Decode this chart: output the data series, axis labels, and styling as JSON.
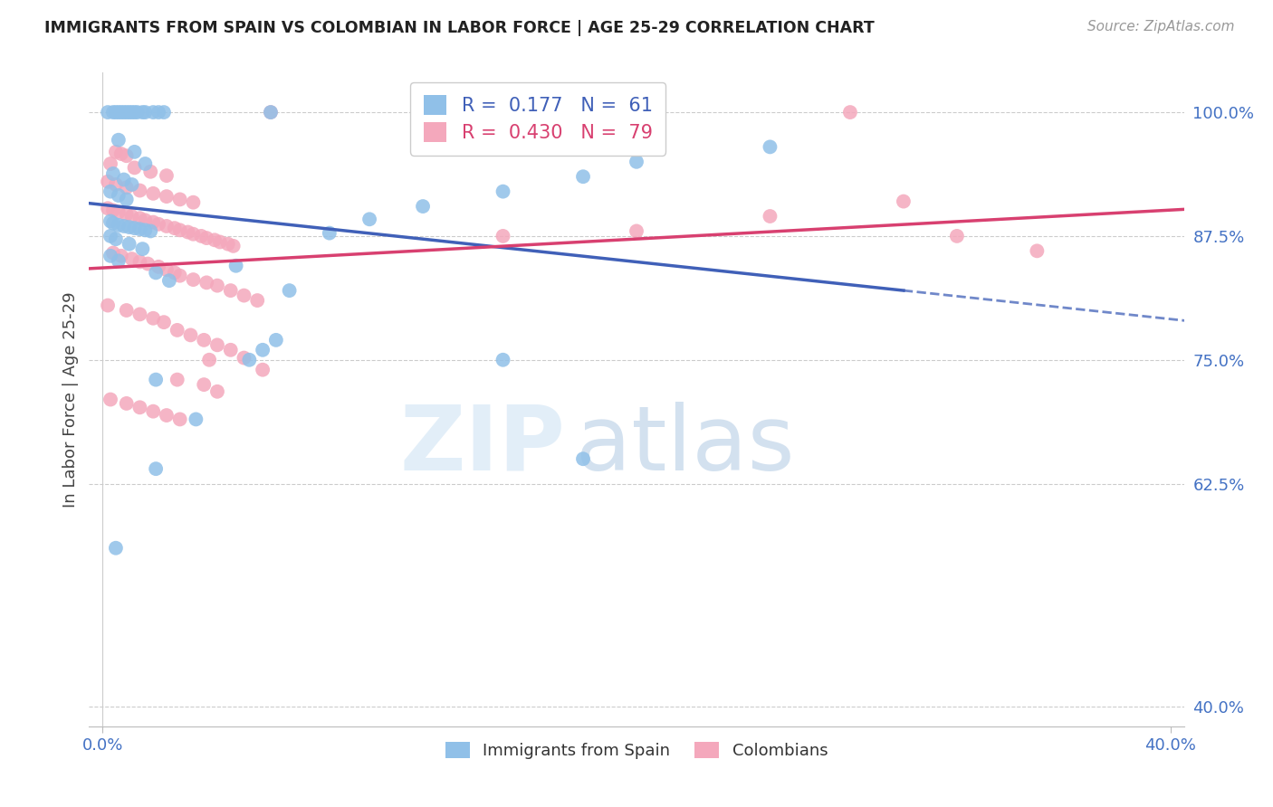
{
  "title": "IMMIGRANTS FROM SPAIN VS COLOMBIAN IN LABOR FORCE | AGE 25-29 CORRELATION CHART",
  "source": "Source: ZipAtlas.com",
  "ylabel": "In Labor Force | Age 25-29",
  "xlim": [
    -0.005,
    0.405
  ],
  "ylim": [
    0.38,
    1.04
  ],
  "yticks": [
    0.4,
    0.625,
    0.75,
    0.875,
    1.0
  ],
  "ytick_labels": [
    "40.0%",
    "62.5%",
    "75.0%",
    "87.5%",
    "100.0%"
  ],
  "xtick_positions": [
    0.0,
    0.4
  ],
  "xtick_labels": [
    "0.0%",
    "40.0%"
  ],
  "blue_R": 0.177,
  "blue_N": 61,
  "pink_R": 0.43,
  "pink_N": 79,
  "blue_color": "#90c0e8",
  "pink_color": "#f4a8bc",
  "blue_line_color": "#4060b8",
  "pink_line_color": "#d84070",
  "axis_tick_color": "#4472c4",
  "background_color": "#ffffff",
  "grid_color": "#cccccc",
  "blue_points": [
    [
      0.002,
      1.0
    ],
    [
      0.004,
      1.0
    ],
    [
      0.005,
      1.0
    ],
    [
      0.006,
      1.0
    ],
    [
      0.007,
      1.0
    ],
    [
      0.008,
      1.0
    ],
    [
      0.009,
      1.0
    ],
    [
      0.01,
      1.0
    ],
    [
      0.011,
      1.0
    ],
    [
      0.012,
      1.0
    ],
    [
      0.013,
      1.0
    ],
    [
      0.015,
      1.0
    ],
    [
      0.016,
      1.0
    ],
    [
      0.019,
      1.0
    ],
    [
      0.021,
      1.0
    ],
    [
      0.023,
      1.0
    ],
    [
      0.063,
      1.0
    ],
    [
      0.006,
      0.972
    ],
    [
      0.012,
      0.96
    ],
    [
      0.016,
      0.948
    ],
    [
      0.004,
      0.938
    ],
    [
      0.008,
      0.932
    ],
    [
      0.011,
      0.927
    ],
    [
      0.003,
      0.92
    ],
    [
      0.006,
      0.916
    ],
    [
      0.009,
      0.912
    ],
    [
      0.003,
      0.89
    ],
    [
      0.004,
      0.888
    ],
    [
      0.006,
      0.886
    ],
    [
      0.008,
      0.885
    ],
    [
      0.01,
      0.884
    ],
    [
      0.012,
      0.883
    ],
    [
      0.014,
      0.882
    ],
    [
      0.016,
      0.881
    ],
    [
      0.018,
      0.88
    ],
    [
      0.003,
      0.875
    ],
    [
      0.005,
      0.872
    ],
    [
      0.01,
      0.867
    ],
    [
      0.015,
      0.862
    ],
    [
      0.003,
      0.855
    ],
    [
      0.006,
      0.85
    ],
    [
      0.05,
      0.845
    ],
    [
      0.02,
      0.838
    ],
    [
      0.025,
      0.83
    ],
    [
      0.07,
      0.82
    ],
    [
      0.085,
      0.878
    ],
    [
      0.1,
      0.892
    ],
    [
      0.12,
      0.905
    ],
    [
      0.15,
      0.92
    ],
    [
      0.18,
      0.935
    ],
    [
      0.2,
      0.95
    ],
    [
      0.25,
      0.965
    ],
    [
      0.02,
      0.73
    ],
    [
      0.035,
      0.69
    ],
    [
      0.02,
      0.64
    ],
    [
      0.005,
      0.56
    ],
    [
      0.15,
      0.75
    ],
    [
      0.18,
      0.65
    ],
    [
      0.055,
      0.75
    ],
    [
      0.06,
      0.76
    ],
    [
      0.065,
      0.77
    ]
  ],
  "pink_points": [
    [
      0.005,
      0.96
    ],
    [
      0.007,
      0.958
    ],
    [
      0.009,
      0.956
    ],
    [
      0.063,
      1.0
    ],
    [
      0.003,
      0.948
    ],
    [
      0.012,
      0.944
    ],
    [
      0.018,
      0.94
    ],
    [
      0.024,
      0.936
    ],
    [
      0.002,
      0.93
    ],
    [
      0.005,
      0.927
    ],
    [
      0.009,
      0.924
    ],
    [
      0.014,
      0.921
    ],
    [
      0.019,
      0.918
    ],
    [
      0.024,
      0.915
    ],
    [
      0.029,
      0.912
    ],
    [
      0.034,
      0.909
    ],
    [
      0.002,
      0.903
    ],
    [
      0.004,
      0.901
    ],
    [
      0.006,
      0.899
    ],
    [
      0.009,
      0.897
    ],
    [
      0.011,
      0.895
    ],
    [
      0.014,
      0.893
    ],
    [
      0.016,
      0.891
    ],
    [
      0.019,
      0.889
    ],
    [
      0.021,
      0.887
    ],
    [
      0.024,
      0.885
    ],
    [
      0.027,
      0.883
    ],
    [
      0.029,
      0.881
    ],
    [
      0.032,
      0.879
    ],
    [
      0.034,
      0.877
    ],
    [
      0.037,
      0.875
    ],
    [
      0.039,
      0.873
    ],
    [
      0.042,
      0.871
    ],
    [
      0.044,
      0.869
    ],
    [
      0.047,
      0.867
    ],
    [
      0.049,
      0.865
    ],
    [
      0.004,
      0.858
    ],
    [
      0.007,
      0.855
    ],
    [
      0.011,
      0.852
    ],
    [
      0.014,
      0.849
    ],
    [
      0.017,
      0.847
    ],
    [
      0.021,
      0.844
    ],
    [
      0.024,
      0.841
    ],
    [
      0.027,
      0.838
    ],
    [
      0.029,
      0.835
    ],
    [
      0.034,
      0.831
    ],
    [
      0.039,
      0.828
    ],
    [
      0.043,
      0.825
    ],
    [
      0.048,
      0.82
    ],
    [
      0.053,
      0.815
    ],
    [
      0.058,
      0.81
    ],
    [
      0.002,
      0.805
    ],
    [
      0.009,
      0.8
    ],
    [
      0.014,
      0.796
    ],
    [
      0.019,
      0.792
    ],
    [
      0.023,
      0.788
    ],
    [
      0.028,
      0.78
    ],
    [
      0.033,
      0.775
    ],
    [
      0.038,
      0.77
    ],
    [
      0.043,
      0.765
    ],
    [
      0.048,
      0.76
    ],
    [
      0.053,
      0.752
    ],
    [
      0.028,
      0.73
    ],
    [
      0.038,
      0.725
    ],
    [
      0.043,
      0.718
    ],
    [
      0.003,
      0.71
    ],
    [
      0.009,
      0.706
    ],
    [
      0.014,
      0.702
    ],
    [
      0.019,
      0.698
    ],
    [
      0.024,
      0.694
    ],
    [
      0.029,
      0.69
    ],
    [
      0.28,
      1.0
    ],
    [
      0.32,
      0.875
    ],
    [
      0.35,
      0.86
    ],
    [
      0.15,
      0.875
    ],
    [
      0.2,
      0.88
    ],
    [
      0.25,
      0.895
    ],
    [
      0.3,
      0.91
    ],
    [
      0.04,
      0.75
    ],
    [
      0.06,
      0.74
    ]
  ]
}
